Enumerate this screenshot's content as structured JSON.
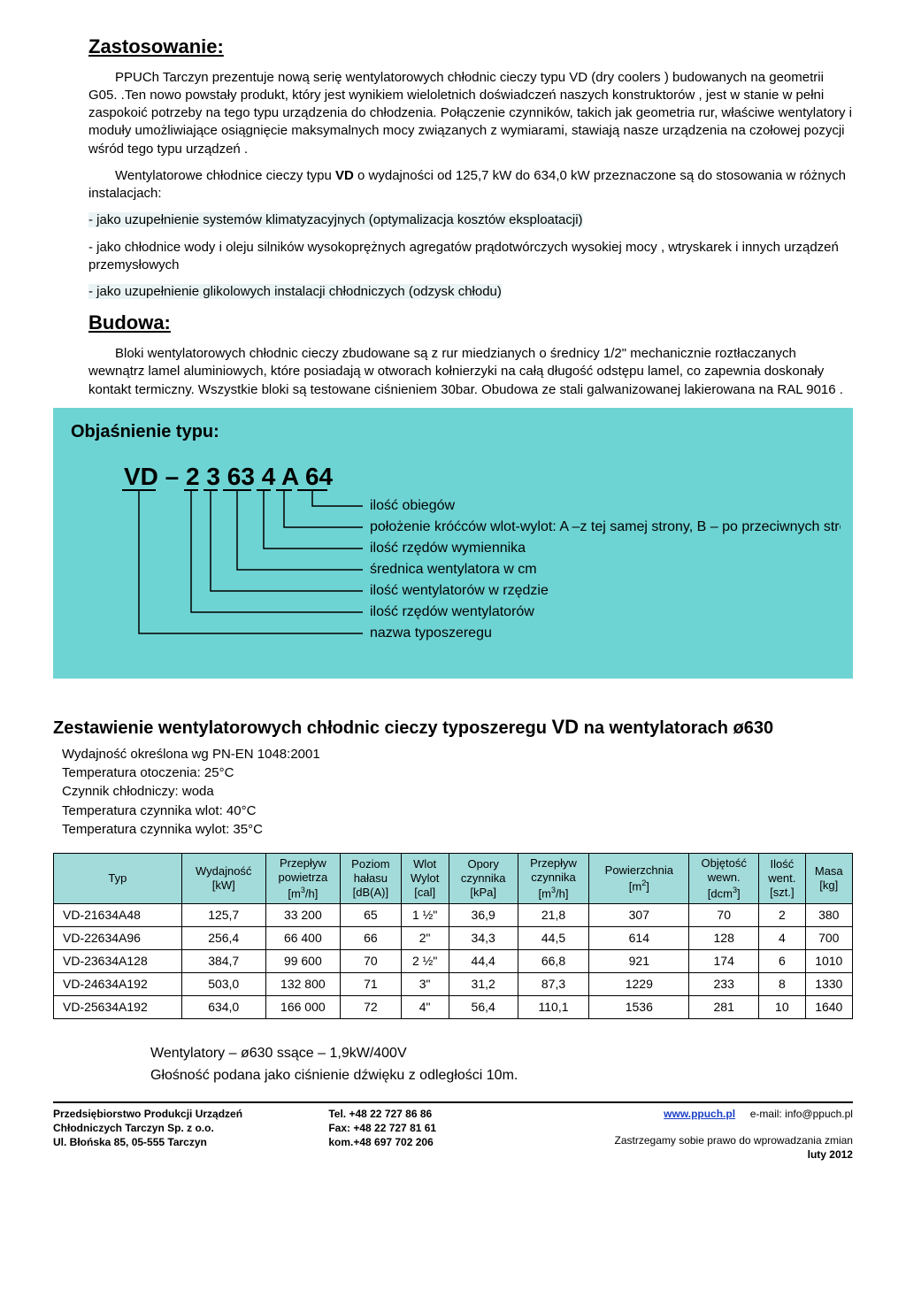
{
  "sections": {
    "application_title": "Zastosowanie:",
    "application_p1": "PPUCh Tarczyn prezentuje nową serię wentylatorowych chłodnic cieczy typu VD (dry coolers ) budowanych na geometrii G05. .Ten nowo powstały produkt, który jest wynikiem wieloletnich doświadczeń naszych konstruktorów , jest w stanie w pełni zaspokoić potrzeby na tego typu urządzenia do chłodzenia. Połączenie czynników, takich jak geometria rur, właściwe wentylatory i moduły umożliwiające osiągnięcie maksymalnych mocy związanych z wymiarami, stawiają nasze urządzenia na czołowej pozycji wśród tego typu urządzeń .",
    "application_p2_a": "Wentylatorowe chłodnice cieczy typu ",
    "application_p2_b": "VD",
    "application_p2_c": " o wydajności od 125,7 kW do 634,0 kW przeznaczone są do stosowania w różnych instalacjach:",
    "application_list": [
      "- jako uzupełnienie systemów klimatyzacyjnych (optymalizacja kosztów eksploatacji)",
      "- jako chłodnice wody i oleju silników wysokoprężnych agregatów prądotwórczych wysokiej mocy , wtryskarek i innych urządzeń przemysłowych",
      "- jako uzupełnienie glikolowych instalacji chłodniczych (odzysk chłodu)"
    ],
    "construction_title": "Budowa:",
    "construction_p": "Bloki wentylatorowych chłodnic cieczy zbudowane są z rur miedzianych o średnicy 1/2\" mechanicznie roztłaczanych wewnątrz lamel aluminiowych, które posiadają w otworach kołnierzyki na całą długość odstępu lamel, co zapewnia doskonały kontakt termiczny. Wszystkie bloki są testowane ciśnieniem 30bar. Obudowa ze stali galwanizowanej lakierowana na RAL 9016 ."
  },
  "type_diagram": {
    "title": "Objaśnienie typu:",
    "segments": [
      "VD",
      "–",
      "2",
      "3",
      "63",
      "4",
      "A",
      "64"
    ],
    "labels": {
      "l64": "ilość obiegów",
      "lA": "położenie króćców wlot-wylot: A –z tej samej strony, B – po przeciwnych stronach",
      "l4": "ilość rzędów wymiennika",
      "l63": "średnica wentylatora w cm",
      "l3": "ilość wentylatorów w rzędzie",
      "l2": "ilość rzędów wentylatorów",
      "lVD": "nazwa typoszeregu"
    }
  },
  "summary": {
    "title_a": "Zestawienie wentylatorowych chłodnic cieczy typoszeregu ",
    "title_b": "VD",
    "title_c": " na wentylatorach ø630",
    "conditions": [
      "Wydajność określona wg PN-EN 1048:2001",
      "Temperatura otoczenia: 25°C",
      "Czynnik chłodniczy: woda",
      "Temperatura czynnika wlot: 40°C",
      "Temperatura czynnika wylot: 35°C"
    ]
  },
  "table": {
    "headers": [
      "Typ",
      "Wydajność\n[kW]",
      "Przepływ\npowietrza\n[m³/h]",
      "Poziom\nhałasu\n[dB(A)]",
      "Wlot\nWylot\n[cal]",
      "Opory\nczynnika\n[kPa]",
      "Przepływ\nczynnika\n[m³/h]",
      "Powierzchnia\n[m²]",
      "Objętość\nwewn.\n[dcm³]",
      "Ilość\nwent.\n[szt.]",
      "Masa\n[kg]"
    ],
    "rows": [
      [
        "VD-21634A48",
        "125,7",
        "33 200",
        "65",
        "1 ½\"",
        "36,9",
        "21,8",
        "307",
        "70",
        "2",
        "380"
      ],
      [
        "VD-22634A96",
        "256,4",
        "66 400",
        "66",
        "2\"",
        "34,3",
        "44,5",
        "614",
        "128",
        "4",
        "700"
      ],
      [
        "VD-23634A128",
        "384,7",
        "99 600",
        "70",
        "2 ½\"",
        "44,4",
        "66,8",
        "921",
        "174",
        "6",
        "1010"
      ],
      [
        "VD-24634A192",
        "503,0",
        "132 800",
        "71",
        "3\"",
        "31,2",
        "87,3",
        "1229",
        "233",
        "8",
        "1330"
      ],
      [
        "VD-25634A192",
        "634,0",
        "166 000",
        "72",
        "4\"",
        "56,4",
        "110,1",
        "1536",
        "281",
        "10",
        "1640"
      ]
    ],
    "header_bg": "#a3dada"
  },
  "post_notes": [
    "Wentylatory – ø630 ssące – 1,9kW/400V",
    "Głośność podana jako ciśnienie dźwięku z odległości 10m."
  ],
  "footer": {
    "company1": "Przedsiębiorstwo Produkcji Urządzeń",
    "company2": "Chłodniczych Tarczyn Sp. z o.o.",
    "address": "Ul. Błońska 85, 05-555 Tarczyn",
    "tel": "Tel.  +48 22 727 86 86",
    "fax": "Fax: +48 22 727 81 61",
    "kom": "kom.+48 697 702 206",
    "url": "www.ppuch.pl",
    "email_label": "e-mail:  info@ppuch.pl",
    "disclaimer": "Zastrzegamy sobie prawo do wprowadzania zmian",
    "date": "luty 2012"
  }
}
